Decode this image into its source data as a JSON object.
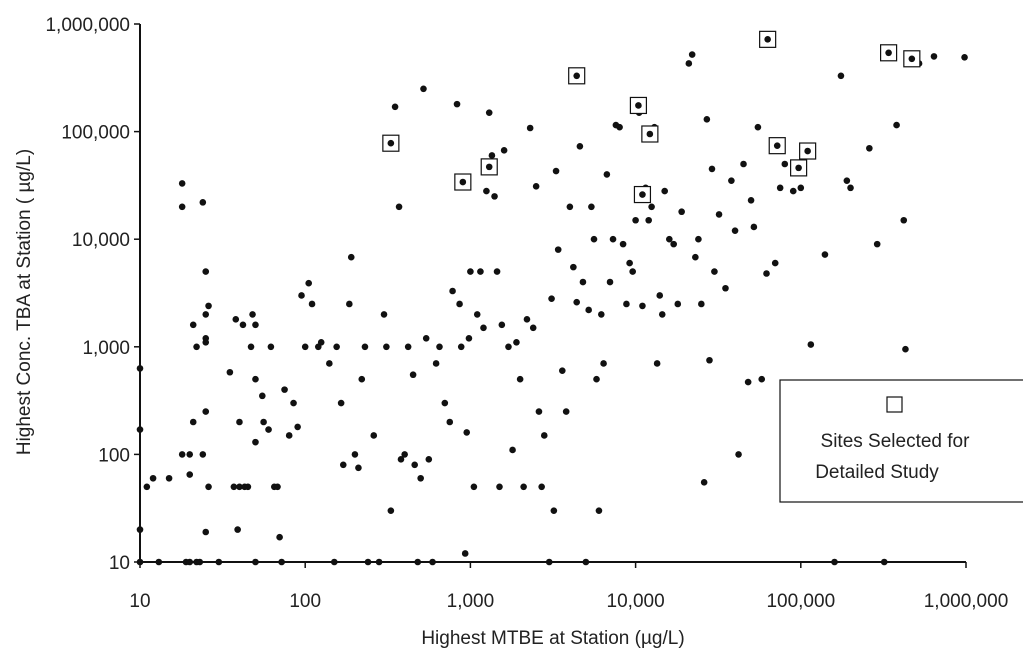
{
  "chart_data": {
    "type": "scatter",
    "title": "",
    "xlabel": "Highest MTBE at Station (µg/L)",
    "ylabel": "Highest Conc. TBA at Station ( µg/L)",
    "x_scale": "log",
    "y_scale": "log",
    "xlim": [
      10,
      1000000
    ],
    "ylim": [
      10,
      1000000
    ],
    "x_ticks": [
      10,
      100,
      1000,
      10000,
      100000,
      1000000
    ],
    "x_tick_labels": [
      "10",
      "100",
      "1,000",
      "10,000",
      "100,000",
      "1,000,000"
    ],
    "y_ticks": [
      10,
      100,
      1000,
      10000,
      100000,
      1000000
    ],
    "y_tick_labels": [
      "10",
      "100",
      "1,000",
      "10,000",
      "100,000",
      "1,000,000"
    ],
    "grid": false,
    "legend": {
      "placement": "bottom-right",
      "entries": [
        "Sites Selected for",
        "Detailed Study"
      ],
      "marker": "open-square"
    },
    "series": [
      {
        "marker": "filled-circle",
        "color": "#111111",
        "points": [
          [
            10,
            630
          ],
          [
            10,
            170
          ],
          [
            10,
            20
          ],
          [
            10,
            10
          ],
          [
            11,
            50
          ],
          [
            12,
            60
          ],
          [
            13,
            10
          ],
          [
            15,
            60
          ],
          [
            18,
            100
          ],
          [
            18,
            33000
          ],
          [
            18,
            20000
          ],
          [
            19,
            10
          ],
          [
            20,
            100
          ],
          [
            20,
            65
          ],
          [
            21,
            200
          ],
          [
            21,
            1600
          ],
          [
            22,
            1000
          ],
          [
            20,
            10
          ],
          [
            22,
            10
          ],
          [
            23,
            10
          ],
          [
            24,
            100
          ],
          [
            24,
            22000
          ],
          [
            25,
            5000
          ],
          [
            25,
            2000
          ],
          [
            25,
            1100
          ],
          [
            25,
            1200
          ],
          [
            25,
            250
          ],
          [
            25,
            19
          ],
          [
            26,
            50
          ],
          [
            26,
            2400
          ],
          [
            30,
            10
          ],
          [
            35,
            580
          ],
          [
            37,
            50
          ],
          [
            38,
            1800
          ],
          [
            39,
            20
          ],
          [
            40,
            200
          ],
          [
            40,
            50
          ],
          [
            42,
            1600
          ],
          [
            43,
            50
          ],
          [
            45,
            50
          ],
          [
            47,
            1000
          ],
          [
            48,
            2000
          ],
          [
            50,
            1600
          ],
          [
            50,
            500
          ],
          [
            50,
            130
          ],
          [
            50,
            10
          ],
          [
            55,
            350
          ],
          [
            56,
            200
          ],
          [
            60,
            170
          ],
          [
            62,
            1000
          ],
          [
            65,
            50
          ],
          [
            68,
            50
          ],
          [
            70,
            17
          ],
          [
            72,
            10
          ],
          [
            75,
            400
          ],
          [
            80,
            150
          ],
          [
            85,
            300
          ],
          [
            90,
            180
          ],
          [
            95,
            3000
          ],
          [
            100,
            1000
          ],
          [
            105,
            3900
          ],
          [
            110,
            2500
          ],
          [
            120,
            1000
          ],
          [
            125,
            1100
          ],
          [
            140,
            700
          ],
          [
            150,
            10
          ],
          [
            155,
            1000
          ],
          [
            165,
            300
          ],
          [
            170,
            80
          ],
          [
            185,
            2500
          ],
          [
            190,
            6800
          ],
          [
            200,
            100
          ],
          [
            210,
            75
          ],
          [
            220,
            500
          ],
          [
            230,
            1000
          ],
          [
            240,
            10
          ],
          [
            260,
            150
          ],
          [
            280,
            10
          ],
          [
            300,
            2000
          ],
          [
            310,
            1000
          ],
          [
            330,
            30
          ],
          [
            350,
            170000
          ],
          [
            370,
            20000
          ],
          [
            380,
            90
          ],
          [
            400,
            100
          ],
          [
            420,
            1000
          ],
          [
            450,
            550
          ],
          [
            460,
            80
          ],
          [
            480,
            10
          ],
          [
            500,
            60
          ],
          [
            520,
            250000
          ],
          [
            540,
            1200
          ],
          [
            560,
            90
          ],
          [
            590,
            10
          ],
          [
            620,
            700
          ],
          [
            650,
            1000
          ],
          [
            700,
            300
          ],
          [
            750,
            200
          ],
          [
            780,
            3300
          ],
          [
            830,
            180000
          ],
          [
            860,
            2500
          ],
          [
            880,
            1000
          ],
          [
            930,
            12
          ],
          [
            950,
            160
          ],
          [
            980,
            1200
          ],
          [
            1000,
            5000
          ],
          [
            1050,
            50
          ],
          [
            1100,
            2000
          ],
          [
            1150,
            5000
          ],
          [
            1200,
            1500
          ],
          [
            1250,
            28000
          ],
          [
            1300,
            150000
          ],
          [
            1350,
            60000
          ],
          [
            1400,
            25000
          ],
          [
            1450,
            5000
          ],
          [
            1500,
            50
          ],
          [
            1550,
            1600
          ],
          [
            1600,
            67000
          ],
          [
            1700,
            1000
          ],
          [
            1800,
            110
          ],
          [
            1900,
            1100
          ],
          [
            2000,
            500
          ],
          [
            2100,
            50
          ],
          [
            2200,
            1800
          ],
          [
            2300,
            108000
          ],
          [
            2400,
            1500
          ],
          [
            2500,
            31000
          ],
          [
            2600,
            250
          ],
          [
            2700,
            50
          ],
          [
            2800,
            150
          ],
          [
            3000,
            10
          ],
          [
            3100,
            2800
          ],
          [
            3200,
            30
          ],
          [
            3300,
            43000
          ],
          [
            3400,
            8000
          ],
          [
            3600,
            600
          ],
          [
            3800,
            250
          ],
          [
            4000,
            20000
          ],
          [
            4200,
            5500
          ],
          [
            4400,
            2600
          ],
          [
            4600,
            73000
          ],
          [
            4800,
            4000
          ],
          [
            5000,
            10
          ],
          [
            5200,
            2200
          ],
          [
            5400,
            20000
          ],
          [
            5600,
            10000
          ],
          [
            5800,
            500
          ],
          [
            6000,
            30
          ],
          [
            6200,
            2000
          ],
          [
            6400,
            700
          ],
          [
            6700,
            40000
          ],
          [
            7000,
            4000
          ],
          [
            7300,
            10000
          ],
          [
            7600,
            115000
          ],
          [
            8000,
            110000
          ],
          [
            8400,
            9000
          ],
          [
            8800,
            2500
          ],
          [
            9200,
            6000
          ],
          [
            9600,
            5000
          ],
          [
            10000,
            15000
          ],
          [
            10500,
            150000
          ],
          [
            11000,
            2400
          ],
          [
            11500,
            30000
          ],
          [
            12000,
            15000
          ],
          [
            12500,
            20000
          ],
          [
            13000,
            110000
          ],
          [
            13500,
            700
          ],
          [
            14000,
            3000
          ],
          [
            14500,
            2000
          ],
          [
            15000,
            28000
          ],
          [
            16000,
            10000
          ],
          [
            17000,
            9000
          ],
          [
            18000,
            2500
          ],
          [
            19000,
            18000
          ],
          [
            21000,
            430000
          ],
          [
            22000,
            520000
          ],
          [
            23000,
            6800
          ],
          [
            24000,
            10000
          ],
          [
            25000,
            2500
          ],
          [
            26000,
            55
          ],
          [
            27000,
            130000
          ],
          [
            28000,
            750
          ],
          [
            29000,
            45000
          ],
          [
            30000,
            5000
          ],
          [
            32000,
            17000
          ],
          [
            35000,
            3500
          ],
          [
            38000,
            35000
          ],
          [
            40000,
            12000
          ],
          [
            42000,
            100
          ],
          [
            45000,
            50000
          ],
          [
            48000,
            470
          ],
          [
            50000,
            23000
          ],
          [
            52000,
            13000
          ],
          [
            55000,
            110000
          ],
          [
            58000,
            500
          ],
          [
            62000,
            4800
          ],
          [
            70000,
            6000
          ],
          [
            75000,
            30000
          ],
          [
            80000,
            50000
          ],
          [
            90000,
            28000
          ],
          [
            100000,
            30000
          ],
          [
            115000,
            1050
          ],
          [
            140000,
            7200
          ],
          [
            160000,
            10
          ],
          [
            175000,
            330000
          ],
          [
            190000,
            35000
          ],
          [
            200000,
            30000
          ],
          [
            260000,
            70000
          ],
          [
            290000,
            9000
          ],
          [
            320000,
            10
          ],
          [
            380000,
            115000
          ],
          [
            420000,
            15000
          ],
          [
            430000,
            950
          ],
          [
            520000,
            430000
          ],
          [
            640000,
            500000
          ],
          [
            980000,
            490000
          ]
        ]
      },
      {
        "name": "Sites Selected for Detailed Study",
        "marker": "filled-circle-in-open-square",
        "color": "#111111",
        "points": [
          [
            330,
            78000
          ],
          [
            900,
            34000
          ],
          [
            1300,
            47000
          ],
          [
            4400,
            330000
          ],
          [
            10400,
            175000
          ],
          [
            11000,
            26000
          ],
          [
            12200,
            95000
          ],
          [
            63000,
            720000
          ],
          [
            72000,
            74000
          ],
          [
            97000,
            46000
          ],
          [
            110000,
            66000
          ],
          [
            340000,
            540000
          ],
          [
            470000,
            475000
          ]
        ]
      }
    ]
  }
}
